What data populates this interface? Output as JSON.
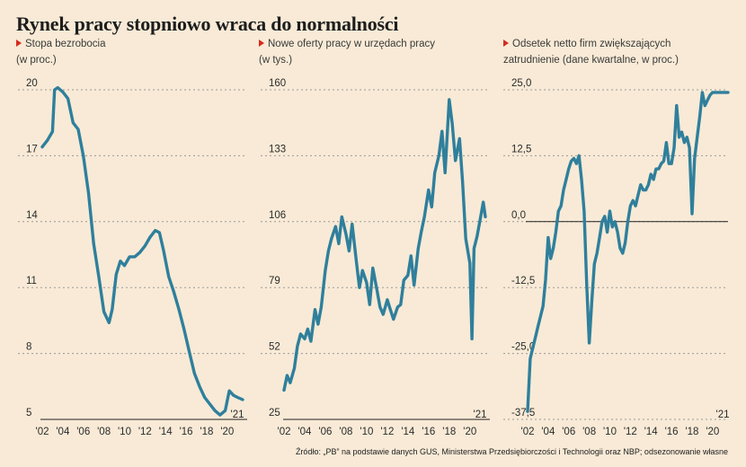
{
  "title": "Rynek pracy stopniowo wraca do normalności",
  "source": "Źródło: „PB” na podstawie danych GUS, Ministerstwa Przedsiębiorczości i Technologii oraz NBP; odsezonowanie własne",
  "colors": {
    "line": "#2f7f9c",
    "accent": "#d52b1e",
    "background": "#f8ead6"
  },
  "chart_data": [
    {
      "type": "line",
      "title_lines": [
        "Stopa bezrobocia",
        "(w proc.)"
      ],
      "x_ticks": [
        "'02",
        "'04",
        "'06",
        "'08",
        "'10",
        "'12",
        "'14",
        "'16",
        "'18",
        "'20"
      ],
      "y_ticks": [
        "20",
        "17",
        "14",
        "11",
        "8",
        "5"
      ],
      "ylim": [
        5,
        20
      ],
      "xlim": [
        2002.0,
        2021.5
      ],
      "end_label": "'21",
      "zero_line": 5,
      "series": [
        {
          "x": [
            2002.0,
            2002.5,
            2003.0,
            2003.2,
            2003.5,
            2004.0,
            2004.5,
            2005.0,
            2005.5,
            2006.0,
            2006.5,
            2007.0,
            2007.5,
            2008.0,
            2008.5,
            2008.8,
            2009.2,
            2009.6,
            2010.0,
            2010.5,
            2011.0,
            2011.5,
            2012.0,
            2012.5,
            2013.0,
            2013.4,
            2013.8,
            2014.3,
            2014.8,
            2015.3,
            2015.8,
            2016.3,
            2016.8,
            2017.3,
            2017.8,
            2018.3,
            2018.8,
            2019.3,
            2019.8,
            2020.2,
            2020.6,
            2021.0,
            2021.5
          ],
          "values": [
            17.4,
            17.7,
            18.1,
            20.0,
            20.1,
            19.9,
            19.6,
            18.5,
            18.2,
            17.0,
            15.3,
            13.0,
            11.5,
            9.9,
            9.4,
            10.0,
            11.6,
            12.2,
            12.0,
            12.4,
            12.4,
            12.6,
            12.9,
            13.3,
            13.6,
            13.5,
            12.7,
            11.5,
            10.8,
            10.0,
            9.1,
            8.1,
            7.1,
            6.5,
            6.0,
            5.7,
            5.4,
            5.2,
            5.4,
            6.3,
            6.1,
            6.0,
            5.9
          ]
        }
      ]
    },
    {
      "type": "line",
      "title_lines": [
        "Nowe oferty pracy w urzędach pracy",
        "(w tys.)"
      ],
      "x_ticks": [
        "'02",
        "'04",
        "'06",
        "'08",
        "'10",
        "'12",
        "'14",
        "'16",
        "'18",
        "'20"
      ],
      "y_ticks": [
        "160",
        "133",
        "106",
        "79",
        "52",
        "25"
      ],
      "ylim": [
        25,
        160
      ],
      "xlim": [
        2002.0,
        2021.5
      ],
      "end_label": "'21",
      "zero_line": 25,
      "series": [
        {
          "x": [
            2002.0,
            2002.3,
            2002.6,
            2003.0,
            2003.3,
            2003.6,
            2004.0,
            2004.3,
            2004.6,
            2005.0,
            2005.3,
            2005.6,
            2006.0,
            2006.3,
            2006.6,
            2007.0,
            2007.3,
            2007.6,
            2008.0,
            2008.3,
            2008.6,
            2009.0,
            2009.3,
            2009.6,
            2010.0,
            2010.3,
            2010.6,
            2011.0,
            2011.3,
            2011.6,
            2012.0,
            2012.3,
            2012.6,
            2013.0,
            2013.3,
            2013.6,
            2014.0,
            2014.3,
            2014.6,
            2015.0,
            2015.3,
            2015.6,
            2016.0,
            2016.3,
            2016.6,
            2017.0,
            2017.3,
            2017.6,
            2018.0,
            2018.3,
            2018.6,
            2019.0,
            2019.3,
            2019.6,
            2020.0,
            2020.2,
            2020.4,
            2020.7,
            2021.0,
            2021.3,
            2021.5
          ],
          "values": [
            37,
            43,
            40,
            46,
            55,
            60,
            58,
            62,
            57,
            70,
            64,
            71,
            86,
            94,
            99,
            104,
            97,
            108,
            101,
            94,
            105,
            90,
            79,
            86,
            81,
            72,
            87,
            78,
            71,
            68,
            74,
            70,
            66,
            71,
            72,
            82,
            84,
            92,
            80,
            95,
            102,
            108,
            119,
            112,
            126,
            133,
            143,
            126,
            156,
            146,
            131,
            140,
            122,
            99,
            89,
            58,
            95,
            100,
            107,
            114,
            108
          ]
        }
      ]
    },
    {
      "type": "line",
      "title_lines": [
        "Odsetek netto firm zwiększających",
        "zatrudnienie (dane kwartalne, w proc.)"
      ],
      "x_ticks": [
        "'02",
        "'04",
        "'06",
        "'08",
        "'10",
        "'12",
        "'14",
        "'16",
        "'18",
        "'20"
      ],
      "y_ticks": [
        "25,0",
        "12,5",
        "0,0",
        "-12,5",
        "-25,0",
        "-37,5"
      ],
      "ylim": [
        -37.5,
        25
      ],
      "xlim": [
        2002.0,
        2021.5
      ],
      "end_label": "'21",
      "zero_line": 0,
      "series": [
        {
          "x": [
            2002.0,
            2002.25,
            2002.5,
            2002.75,
            2003.0,
            2003.25,
            2003.5,
            2003.75,
            2004.0,
            2004.25,
            2004.5,
            2004.75,
            2005.0,
            2005.25,
            2005.5,
            2005.75,
            2006.0,
            2006.25,
            2006.5,
            2006.75,
            2007.0,
            2007.25,
            2007.5,
            2007.75,
            2008.0,
            2008.25,
            2008.5,
            2008.75,
            2009.0,
            2009.25,
            2009.5,
            2009.75,
            2010.0,
            2010.25,
            2010.5,
            2010.75,
            2011.0,
            2011.25,
            2011.5,
            2011.75,
            2012.0,
            2012.25,
            2012.5,
            2012.75,
            2013.0,
            2013.25,
            2013.5,
            2013.75,
            2014.0,
            2014.25,
            2014.5,
            2014.75,
            2015.0,
            2015.25,
            2015.5,
            2015.75,
            2016.0,
            2016.25,
            2016.5,
            2016.75,
            2017.0,
            2017.25,
            2017.5,
            2017.75,
            2018.0,
            2018.25,
            2018.5,
            2018.75,
            2019.0,
            2019.25,
            2019.5,
            2019.75,
            2020.0,
            2020.25,
            2020.5,
            2020.75,
            2021.0,
            2021.25,
            2021.5
          ],
          "values": [
            -36,
            -26,
            -24,
            -22,
            -20,
            -18,
            -16,
            -11,
            -3,
            -7,
            -5,
            -2,
            2,
            3,
            6,
            8,
            10,
            11.5,
            12,
            11,
            12.5,
            8,
            2,
            -12,
            -23,
            -15,
            -8,
            -6,
            -3,
            0,
            1,
            -2,
            2,
            -1,
            0,
            -2,
            -5,
            -6,
            -4,
            0,
            3,
            4,
            3,
            5,
            7,
            6,
            6,
            7,
            9,
            8,
            10,
            10,
            11,
            11.5,
            15,
            11,
            11,
            14,
            22,
            16,
            17,
            15,
            16,
            14,
            1.5,
            12,
            16,
            20,
            24.5,
            22,
            23,
            24,
            24.5,
            24.5,
            24.5,
            24.5,
            24.5,
            24.5,
            24.5
          ]
        }
      ]
    }
  ]
}
